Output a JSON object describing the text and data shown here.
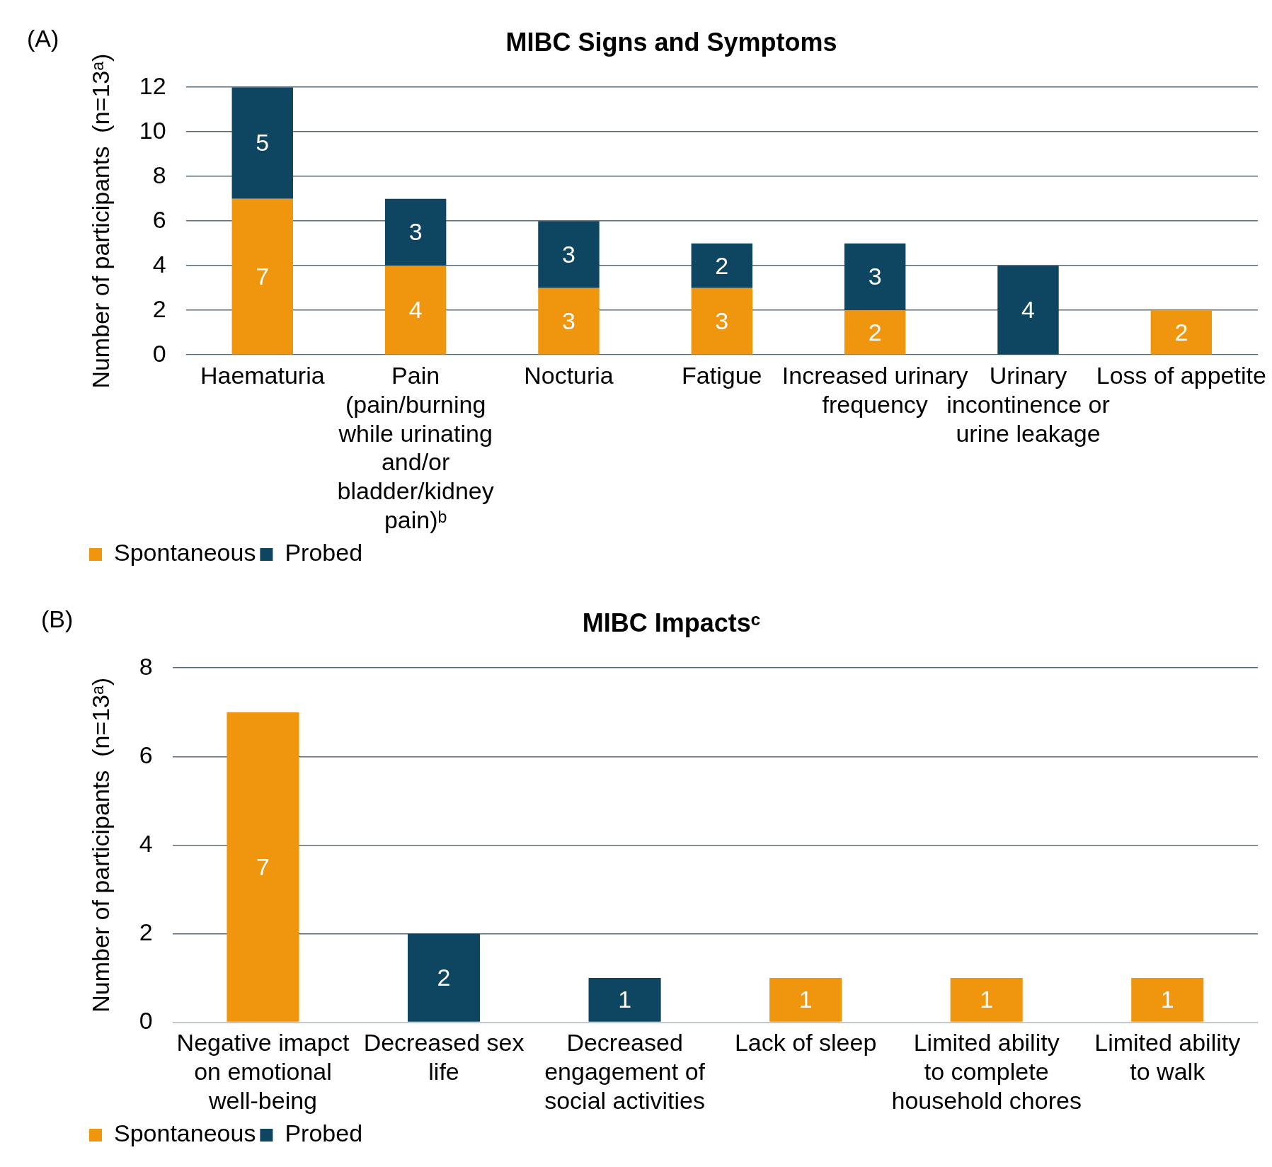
{
  "chart_data": [
    {
      "type": "bar",
      "title": "MIBC Signs and Symptoms",
      "ylabel": "Number of participants  (n=13ᵃ)",
      "annotations": [
        "(A)"
      ],
      "categories": [
        "Haematuria",
        "Pain (pain/burning while urinating and/or bladder/kidney pain)ᵇ",
        "Nocturia",
        "Fatigue",
        "Increased urinary frequency",
        "Urinary incontinence or urine leakage",
        "Loss of appetite"
      ],
      "series": [
        {
          "name": "Spontaneous",
          "color": "#f0950e",
          "values": [
            7,
            4,
            3,
            3,
            2,
            null,
            2
          ]
        },
        {
          "name": "Probed",
          "color": "#0e4661",
          "values": [
            5,
            3,
            3,
            2,
            3,
            4,
            null
          ]
        }
      ],
      "stacked": true,
      "ylim": [
        0,
        12
      ],
      "yticks": [
        0,
        2,
        4,
        6,
        8,
        10,
        12
      ],
      "grid": "y",
      "legend": "bottom left",
      "data_labels": true
    },
    {
      "type": "bar",
      "title": "MIBC Impactsᶜ",
      "ylabel": "Number of participants  (n=13ᵃ)",
      "annotations": [
        "(B)"
      ],
      "categories": [
        "Negative imapct on emotional well-being",
        "Decreased sex life",
        "Decreased engagement of social activities",
        "Lack of sleep",
        "Limited ability to complete household chores",
        "Limited ability to walk"
      ],
      "series": [
        {
          "name": "Spontaneous",
          "color": "#f0950e",
          "values": [
            7,
            null,
            null,
            1,
            1,
            1
          ]
        },
        {
          "name": "Probed",
          "color": "#0e4661",
          "values": [
            null,
            2,
            1,
            null,
            null,
            null
          ]
        }
      ],
      "stacked": true,
      "ylim": [
        0,
        8
      ],
      "yticks": [
        0,
        2,
        4,
        6,
        8
      ],
      "grid": "y",
      "legend": "bottom left",
      "data_labels": true
    }
  ]
}
